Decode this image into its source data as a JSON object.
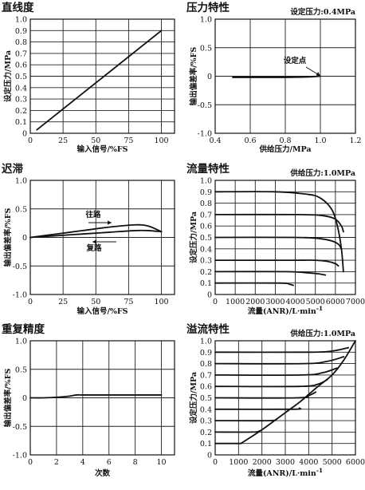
{
  "chart_data": [
    {
      "id": "linearity",
      "type": "line",
      "title": "直线度",
      "xlabel": "输入信号/%FS",
      "ylabel": "设定压力/MPa",
      "xlim": [
        0,
        110
      ],
      "ylim": [
        0,
        1.0
      ],
      "xticks": [
        "0",
        "25",
        "50",
        "75",
        "100"
      ],
      "yticks": [
        "0",
        "0.1",
        "0.2",
        "0.3",
        "0.4",
        "0.5",
        "0.6",
        "0.7",
        "0.8",
        "0.9",
        "1.0"
      ],
      "series": [
        {
          "x": [
            5,
            100
          ],
          "y": [
            0.03,
            0.9
          ]
        }
      ]
    },
    {
      "id": "pressure-characteristics",
      "type": "line",
      "title": "压力特性",
      "subtitle": "设定压力:0.4MPa",
      "xlabel": "供给压力/MPa",
      "ylabel": "输出偏差率/%FS",
      "xlim": [
        0.4,
        1.2
      ],
      "ylim": [
        -1.0,
        1.0
      ],
      "xticks": [
        "0.4",
        "0.6",
        "0.8",
        "1.0",
        "1.2"
      ],
      "yticks": [
        "1.0",
        "0.5",
        "0",
        "-0.5",
        "-1.0"
      ],
      "annotations": [
        "设定点"
      ],
      "series": [
        {
          "x": [
            0.5,
            0.6,
            0.7,
            0.8,
            0.9,
            0.95,
            1.0
          ],
          "y": [
            -0.02,
            -0.02,
            -0.02,
            -0.02,
            -0.015,
            -0.01,
            0.0
          ]
        }
      ]
    },
    {
      "id": "hysteresis",
      "type": "line",
      "title": "迟滞",
      "xlabel": "输入信号/%FS",
      "ylabel": "输出偏差率/%FS",
      "xlim": [
        0,
        110
      ],
      "ylim": [
        -1.0,
        1.0
      ],
      "xticks": [
        "0",
        "25",
        "50",
        "75",
        "100"
      ],
      "yticks": [
        "1.0",
        "0.5",
        "0",
        "-0.5",
        "-1.0"
      ],
      "annotations": [
        "往路",
        "复路"
      ],
      "series": [
        {
          "x": [
            0,
            20,
            40,
            60,
            80,
            90,
            100
          ],
          "y": [
            0.0,
            0.06,
            0.12,
            0.18,
            0.22,
            0.2,
            0.1
          ]
        },
        {
          "x": [
            0,
            20,
            40,
            60,
            80,
            90,
            100
          ],
          "y": [
            0.0,
            0.03,
            0.06,
            0.09,
            0.12,
            0.12,
            0.1
          ]
        }
      ]
    },
    {
      "id": "flow-characteristics",
      "type": "line",
      "title": "流量特性",
      "subtitle": "供给压力:1.0MPa",
      "xlabel": "流量(ANR)/L·min",
      "xlabel_sup": "-1",
      "ylabel": "设定压力/MPa",
      "xlim": [
        0,
        7000
      ],
      "ylim": [
        0,
        1.0
      ],
      "xticks": [
        "0",
        "1000",
        "2000",
        "3000",
        "4000",
        "5000",
        "6000",
        "7000"
      ],
      "yticks": [
        "0",
        "0.1",
        "0.2",
        "0.3",
        "0.4",
        "0.5",
        "0.6",
        "0.7",
        "0.8",
        "0.9",
        "1.0"
      ],
      "series": [
        {
          "x": [
            0,
            3000,
            4500,
            5200,
            5800,
            6100,
            6300,
            6400
          ],
          "y": [
            0.9,
            0.9,
            0.88,
            0.85,
            0.75,
            0.6,
            0.4,
            0.2
          ]
        },
        {
          "x": [
            0,
            4200,
            5400,
            6000,
            6300,
            6400
          ],
          "y": [
            0.7,
            0.7,
            0.69,
            0.66,
            0.6,
            0.55
          ]
        },
        {
          "x": [
            0,
            4000,
            5200,
            5800,
            6150,
            6300
          ],
          "y": [
            0.5,
            0.5,
            0.49,
            0.47,
            0.44,
            0.4
          ]
        },
        {
          "x": [
            0,
            3800,
            5000,
            5600,
            6000,
            6150
          ],
          "y": [
            0.3,
            0.3,
            0.3,
            0.29,
            0.27,
            0.25
          ]
        },
        {
          "x": [
            0,
            3500,
            4600,
            5200,
            5500
          ],
          "y": [
            0.2,
            0.2,
            0.19,
            0.18,
            0.17
          ]
        },
        {
          "x": [
            0,
            3200,
            3700,
            3900
          ],
          "y": [
            0.1,
            0.1,
            0.09,
            0.08
          ]
        }
      ]
    },
    {
      "id": "repeatability",
      "type": "line",
      "title": "重复精度",
      "xlabel": "次数",
      "ylabel": "输出偏差率/%FS",
      "xlim": [
        0,
        11
      ],
      "ylim": [
        -1.0,
        1.0
      ],
      "xticks": [
        "0",
        "2",
        "4",
        "6",
        "8",
        "10"
      ],
      "yticks": [
        "1.0",
        "0.5",
        "0",
        "-0.5",
        "-1.0"
      ],
      "series": [
        {
          "x": [
            0,
            1,
            2,
            3,
            3.5,
            4,
            5,
            6,
            7,
            8,
            9,
            10
          ],
          "y": [
            0.0,
            0.0,
            0.01,
            0.03,
            0.05,
            0.05,
            0.05,
            0.05,
            0.05,
            0.05,
            0.05,
            0.05
          ]
        }
      ]
    },
    {
      "id": "relief-characteristics",
      "type": "line",
      "title": "溢流特性",
      "subtitle": "供给压力:1.0MPa",
      "xlabel": "流量(ANR)/L·min",
      "xlabel_sup": "-1",
      "ylabel": "设定压力/MPa",
      "xlim": [
        0,
        6000
      ],
      "ylim": [
        0,
        1.0
      ],
      "xticks": [
        "0",
        "1000",
        "2000",
        "3000",
        "4000",
        "5000",
        "6000"
      ],
      "yticks": [
        "0",
        "0.1",
        "0.2",
        "0.3",
        "0.4",
        "0.5",
        "0.6",
        "0.7",
        "0.8",
        "0.9",
        "1.0"
      ],
      "series": [
        {
          "x": [
            1100,
            2000,
            3000,
            3600,
            4000,
            4400,
            5000,
            5500,
            6000
          ],
          "y": [
            0.1,
            0.22,
            0.37,
            0.46,
            0.53,
            0.6,
            0.7,
            0.83,
            1.0
          ]
        },
        {
          "x": [
            0,
            1100
          ],
          "y": [
            0.1,
            0.1
          ]
        },
        {
          "x": [
            0,
            1600,
            1900
          ],
          "y": [
            0.2,
            0.2,
            0.21
          ]
        },
        {
          "x": [
            0,
            2300,
            2600
          ],
          "y": [
            0.3,
            0.3,
            0.31
          ]
        },
        {
          "x": [
            0,
            3300,
            3600
          ],
          "y": [
            0.4,
            0.4,
            0.41
          ]
        },
        {
          "x": [
            0,
            3500,
            4000,
            4300
          ],
          "y": [
            0.5,
            0.5,
            0.52,
            0.55
          ]
        },
        {
          "x": [
            0,
            3600,
            4400,
            4800
          ],
          "y": [
            0.6,
            0.6,
            0.62,
            0.66
          ]
        },
        {
          "x": [
            0,
            3700,
            4600,
            5200
          ],
          "y": [
            0.7,
            0.7,
            0.72,
            0.76
          ]
        },
        {
          "x": [
            0,
            3800,
            4800,
            5500
          ],
          "y": [
            0.8,
            0.8,
            0.82,
            0.86
          ]
        },
        {
          "x": [
            0,
            4000,
            5000,
            5700
          ],
          "y": [
            0.9,
            0.9,
            0.91,
            0.94
          ]
        }
      ]
    }
  ]
}
